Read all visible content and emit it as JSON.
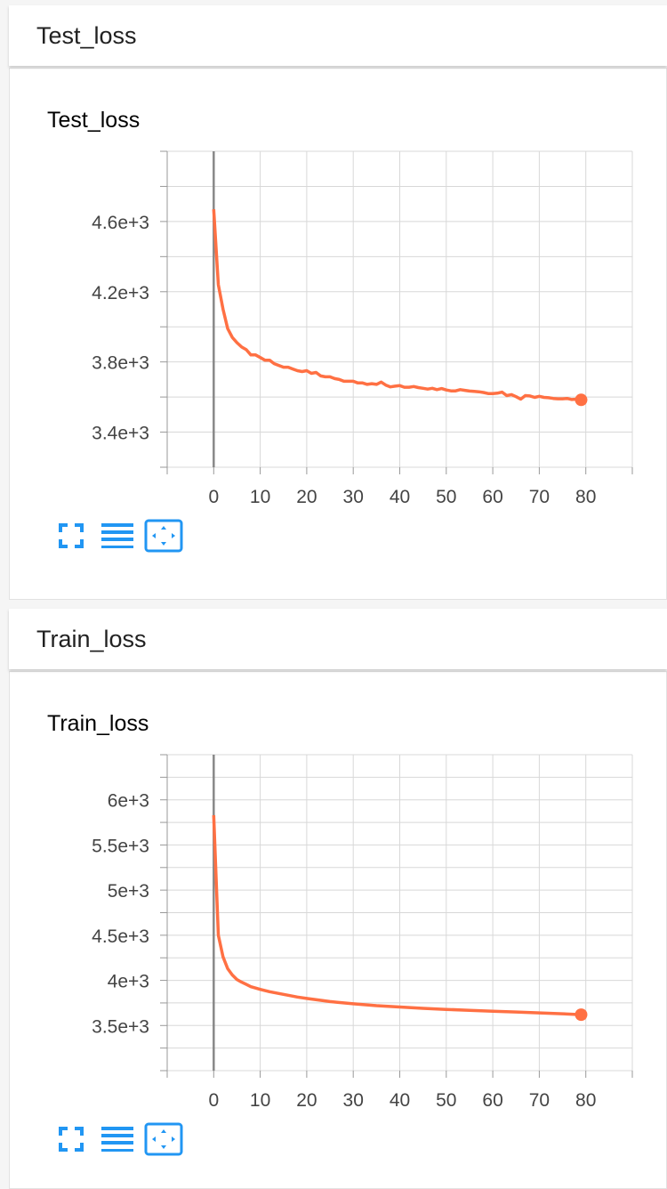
{
  "colors": {
    "line": "#ff7043",
    "icon": "#2196f3",
    "grid": "#d8d8d8",
    "axis": "#999999"
  },
  "panels": [
    {
      "header": "Test_loss",
      "card_title": "Test_loss"
    },
    {
      "header": "Train_loss",
      "card_title": "Train_loss"
    }
  ],
  "toolbar_icons": [
    "fullscreen-icon",
    "list-icon",
    "fit-domain-icon"
  ],
  "chart_data": [
    {
      "type": "line",
      "title": "Test_loss",
      "xlabel": "",
      "ylabel": "",
      "xlim": [
        -10,
        90
      ],
      "ylim": [
        3200,
        5000
      ],
      "xticks": [
        0,
        10,
        20,
        30,
        40,
        50,
        60,
        70,
        80
      ],
      "xtick_labels": [
        "0",
        "10",
        "20",
        "30",
        "40",
        "50",
        "60",
        "70",
        "80"
      ],
      "yticks": [
        3400,
        3800,
        4200,
        4600
      ],
      "ytick_labels": [
        "3.4e+3",
        "3.8e+3",
        "4.2e+3",
        "4.6e+3"
      ],
      "grid": true,
      "series": [
        {
          "x": [
            0,
            1,
            2,
            3,
            4,
            5,
            6,
            7,
            8,
            9,
            10,
            11,
            12,
            13,
            14,
            15,
            16,
            17,
            18,
            19,
            20,
            21,
            22,
            23,
            24,
            25,
            26,
            27,
            28,
            29,
            30,
            31,
            32,
            33,
            34,
            35,
            36,
            37,
            38,
            39,
            40,
            41,
            42,
            43,
            44,
            45,
            46,
            47,
            48,
            49,
            50,
            51,
            52,
            53,
            54,
            55,
            56,
            57,
            58,
            59,
            60,
            61,
            62,
            63,
            64,
            65,
            66,
            67,
            68,
            69,
            70,
            71,
            72,
            73,
            74,
            75,
            76,
            77,
            78,
            79
          ],
          "y": [
            4670,
            4240,
            4100,
            3990,
            3940,
            3910,
            3885,
            3870,
            3840,
            3840,
            3825,
            3810,
            3810,
            3790,
            3780,
            3770,
            3770,
            3760,
            3750,
            3745,
            3750,
            3735,
            3740,
            3720,
            3715,
            3715,
            3705,
            3700,
            3690,
            3690,
            3690,
            3680,
            3680,
            3672,
            3676,
            3672,
            3685,
            3668,
            3658,
            3662,
            3665,
            3656,
            3656,
            3660,
            3654,
            3650,
            3645,
            3650,
            3642,
            3648,
            3640,
            3635,
            3635,
            3642,
            3638,
            3634,
            3632,
            3630,
            3626,
            3620,
            3620,
            3622,
            3628,
            3608,
            3614,
            3602,
            3588,
            3608,
            3606,
            3598,
            3604,
            3598,
            3596,
            3592,
            3590,
            3590,
            3592,
            3586,
            3588,
            3584
          ]
        }
      ]
    },
    {
      "type": "line",
      "title": "Train_loss",
      "xlabel": "",
      "ylabel": "",
      "xlim": [
        -10,
        90
      ],
      "ylim": [
        3000,
        6500
      ],
      "xticks": [
        0,
        10,
        20,
        30,
        40,
        50,
        60,
        70,
        80
      ],
      "xtick_labels": [
        "0",
        "10",
        "20",
        "30",
        "40",
        "50",
        "60",
        "70",
        "80"
      ],
      "yticks": [
        3500,
        4000,
        4500,
        5000,
        5500,
        6000
      ],
      "ytick_labels": [
        "3.5e+3",
        "4e+3",
        "4.5e+3",
        "5e+3",
        "5.5e+3",
        "6e+3"
      ],
      "grid": true,
      "series": [
        {
          "x": [
            0,
            1,
            2,
            3,
            4,
            5,
            6,
            7,
            8,
            9,
            10,
            12,
            14,
            16,
            18,
            20,
            25,
            30,
            35,
            40,
            45,
            50,
            55,
            60,
            65,
            70,
            75,
            79
          ],
          "y": [
            5830,
            4500,
            4260,
            4130,
            4060,
            4010,
            3980,
            3955,
            3930,
            3915,
            3900,
            3875,
            3855,
            3835,
            3815,
            3800,
            3765,
            3740,
            3720,
            3705,
            3690,
            3678,
            3668,
            3658,
            3650,
            3640,
            3630,
            3620
          ]
        }
      ]
    }
  ]
}
